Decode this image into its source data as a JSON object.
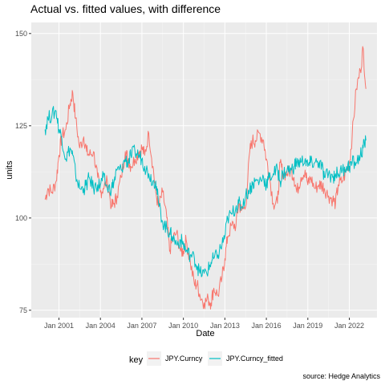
{
  "chart_data": {
    "type": "line",
    "title": "Actual vs. fitted values, with difference",
    "xlabel": "Date",
    "ylabel": "units",
    "caption": "source: Hedge Analytics",
    "xlim": [
      1999.0,
      2024.0
    ],
    "ylim": [
      73,
      153
    ],
    "x_ticks": [
      {
        "label": "Jan 2001",
        "x": 2001
      },
      {
        "label": "Jan 2004",
        "x": 2004
      },
      {
        "label": "Jan 2007",
        "x": 2007
      },
      {
        "label": "Jan 2010",
        "x": 2010
      },
      {
        "label": "Jan 2013",
        "x": 2013
      },
      {
        "label": "Jan 2016",
        "x": 2016
      },
      {
        "label": "Jan 2019",
        "x": 2019
      },
      {
        "label": "Jan 2022",
        "x": 2022
      }
    ],
    "y_ticks": [
      75,
      100,
      125,
      150
    ],
    "grid": true,
    "legend": {
      "title": "key",
      "position": "bottom"
    },
    "series": [
      {
        "name": "JPY.Curncy",
        "color": "#F8766D",
        "x": [
          2000.0,
          2000.2,
          2000.5,
          2000.8,
          2001.0,
          2001.2,
          2001.5,
          2001.8,
          2002.0,
          2002.2,
          2002.5,
          2002.8,
          2003.0,
          2003.2,
          2003.5,
          2003.8,
          2004.0,
          2004.2,
          2004.5,
          2004.8,
          2005.0,
          2005.2,
          2005.5,
          2005.8,
          2006.0,
          2006.2,
          2006.5,
          2006.8,
          2007.0,
          2007.2,
          2007.5,
          2007.8,
          2008.0,
          2008.2,
          2008.5,
          2008.8,
          2009.0,
          2009.2,
          2009.5,
          2009.8,
          2010.0,
          2010.2,
          2010.5,
          2010.8,
          2011.0,
          2011.2,
          2011.5,
          2011.8,
          2012.0,
          2012.2,
          2012.5,
          2012.8,
          2013.0,
          2013.2,
          2013.5,
          2013.8,
          2014.0,
          2014.2,
          2014.5,
          2014.8,
          2015.0,
          2015.2,
          2015.5,
          2015.8,
          2016.0,
          2016.2,
          2016.5,
          2016.8,
          2017.0,
          2017.2,
          2017.5,
          2017.8,
          2018.0,
          2018.2,
          2018.5,
          2018.8,
          2019.0,
          2019.2,
          2019.5,
          2019.8,
          2020.0,
          2020.2,
          2020.5,
          2020.8,
          2021.0,
          2021.2,
          2021.5,
          2021.8,
          2022.0,
          2022.2,
          2022.5,
          2022.8,
          2023.0,
          2023.2
        ],
        "values": [
          105,
          108,
          107,
          110,
          117,
          122,
          124,
          131,
          134,
          127,
          119,
          122,
          118,
          117,
          118,
          111,
          107,
          108,
          110,
          103,
          104,
          106,
          111,
          118,
          116,
          114,
          116,
          118,
          119,
          117,
          123,
          114,
          107,
          103,
          107,
          100,
          91,
          94,
          96,
          91,
          91,
          94,
          88,
          82,
          82,
          79,
          77,
          78,
          77,
          81,
          79,
          84,
          89,
          95,
          98,
          98,
          104,
          102,
          103,
          118,
          121,
          121,
          123,
          121,
          116,
          112,
          104,
          104,
          115,
          112,
          112,
          113,
          111,
          107,
          111,
          113,
          109,
          111,
          108,
          109,
          109,
          108,
          106,
          105,
          104,
          109,
          110,
          113,
          115,
          122,
          135,
          140,
          146,
          135
        ]
      },
      {
        "name": "JPY.Curncy_fitted",
        "color": "#00BFC4",
        "x": [
          2000.0,
          2000.2,
          2000.5,
          2000.8,
          2001.0,
          2001.2,
          2001.5,
          2001.8,
          2002.0,
          2002.2,
          2002.5,
          2002.8,
          2003.0,
          2003.2,
          2003.5,
          2003.8,
          2004.0,
          2004.2,
          2004.5,
          2004.8,
          2005.0,
          2005.2,
          2005.5,
          2005.8,
          2006.0,
          2006.2,
          2006.5,
          2006.8,
          2007.0,
          2007.2,
          2007.5,
          2007.8,
          2008.0,
          2008.2,
          2008.5,
          2008.8,
          2009.0,
          2009.2,
          2009.5,
          2009.8,
          2010.0,
          2010.2,
          2010.5,
          2010.8,
          2011.0,
          2011.2,
          2011.5,
          2011.8,
          2012.0,
          2012.2,
          2012.5,
          2012.8,
          2013.0,
          2013.2,
          2013.5,
          2013.8,
          2014.0,
          2014.2,
          2014.5,
          2014.8,
          2015.0,
          2015.2,
          2015.5,
          2015.8,
          2016.0,
          2016.2,
          2016.5,
          2016.8,
          2017.0,
          2017.2,
          2017.5,
          2017.8,
          2018.0,
          2018.2,
          2018.5,
          2018.8,
          2019.0,
          2019.2,
          2019.5,
          2019.8,
          2020.0,
          2020.2,
          2020.5,
          2020.8,
          2021.0,
          2021.2,
          2021.5,
          2021.8,
          2022.0,
          2022.2,
          2022.5,
          2022.8,
          2023.0,
          2023.2
        ],
        "values": [
          124,
          127,
          128,
          129,
          124,
          122,
          116,
          119,
          117,
          112,
          108,
          108,
          109,
          111,
          108,
          109,
          109,
          111,
          108,
          108,
          110,
          113,
          113,
          116,
          115,
          117,
          118,
          117,
          116,
          114,
          112,
          110,
          110,
          104,
          99,
          97,
          96,
          95,
          93,
          94,
          93,
          91,
          90,
          89,
          87,
          85,
          85,
          86,
          88,
          89,
          90,
          93,
          95,
          100,
          101,
          103,
          104,
          103,
          106,
          108,
          109,
          110,
          110,
          111,
          109,
          111,
          112,
          113,
          110,
          112,
          113,
          113,
          114,
          115,
          115,
          116,
          114,
          115,
          115,
          115,
          114,
          111,
          112,
          111,
          112,
          112,
          113,
          114,
          114,
          115,
          115,
          117,
          119,
          121
        ]
      }
    ]
  }
}
